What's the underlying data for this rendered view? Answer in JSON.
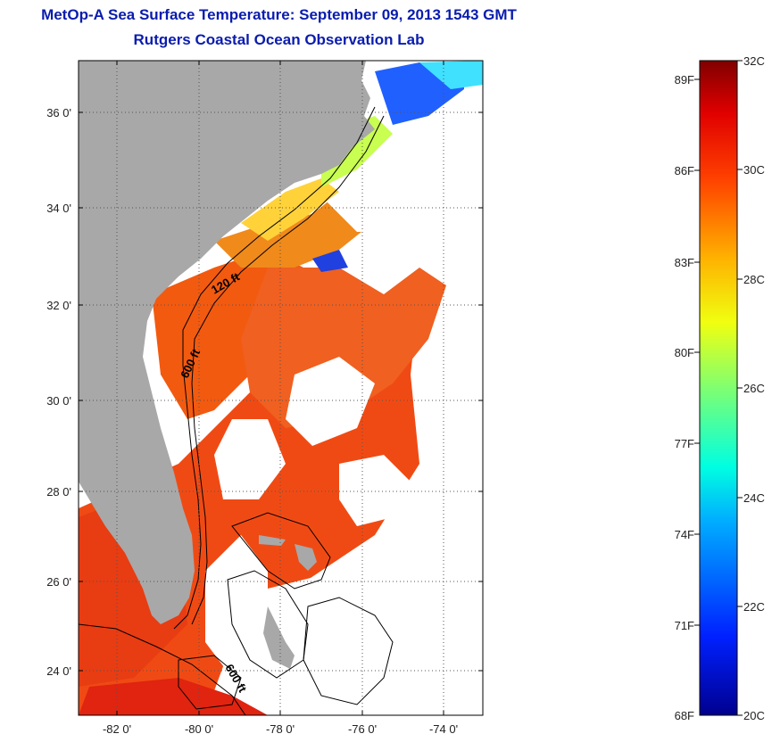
{
  "title": {
    "line1": "MetOp-A Sea Surface Temperature:  September 09, 2013 1543 GMT",
    "line2": "Rutgers Coastal Ocean Observation Lab"
  },
  "map": {
    "lat_labels": [
      "36 0'",
      "34 0'",
      "32 0'",
      "30 0'",
      "28 0'",
      "26 0'",
      "24 0'"
    ],
    "lon_labels": [
      "-82 0'",
      "-80 0'",
      "-78 0'",
      "-76 0'",
      "-74 0'"
    ],
    "contour_labels": [
      "120 ft",
      "600 ft",
      "600 ft"
    ],
    "colors": {
      "land": "#a8a8a8",
      "cloud": "#ffffff",
      "frame": "#000000"
    }
  },
  "colorbar": {
    "fahrenheit_labels": [
      "89F",
      "86F",
      "83F",
      "80F",
      "77F",
      "74F",
      "71F",
      "68F"
    ],
    "celsius_labels": [
      "32C",
      "30C",
      "28C",
      "26C",
      "24C",
      "22C",
      "20C"
    ],
    "range_c": [
      20,
      32
    ]
  }
}
